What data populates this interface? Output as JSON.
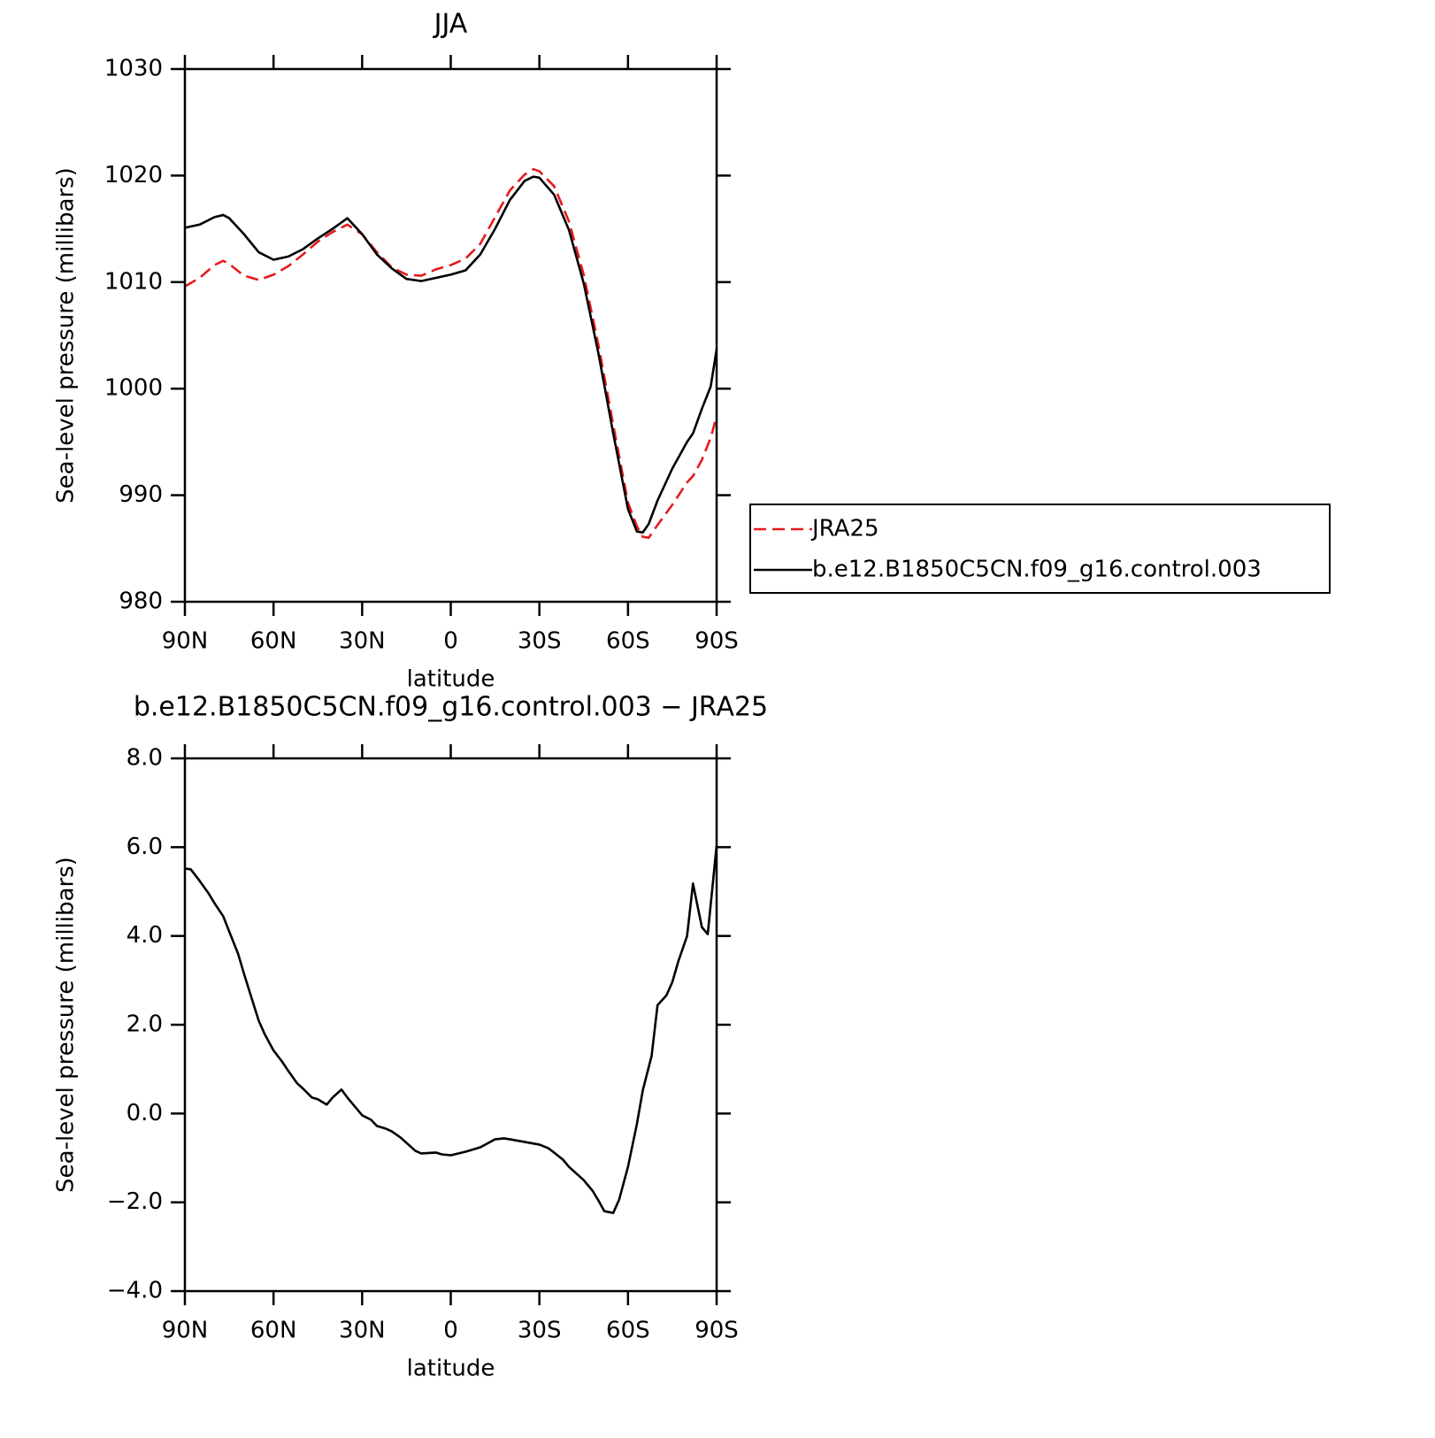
{
  "chart_data": [
    {
      "type": "line",
      "title": "JJA",
      "xlabel": "latitude",
      "ylabel": "Sea-level pressure (millibars)",
      "x": [
        90,
        85,
        80,
        77,
        75,
        70,
        65,
        60,
        55,
        50,
        45,
        40,
        35,
        30,
        25,
        20,
        15,
        10,
        5,
        0,
        -5,
        -10,
        -15,
        -20,
        -25,
        -28,
        -30,
        -35,
        -40,
        -45,
        -50,
        -55,
        -60,
        -63,
        -65,
        -67,
        -70,
        -75,
        -80,
        -82,
        -85,
        -88,
        -90
      ],
      "series": [
        {
          "name": "JRA25",
          "color": "#e41a1c",
          "dashed": true,
          "values": [
            1009.6,
            1010.4,
            1011.6,
            1012.0,
            1011.7,
            1010.6,
            1010.2,
            1010.7,
            1011.5,
            1012.6,
            1013.8,
            1014.7,
            1015.4,
            1014.5,
            1012.8,
            1011.4,
            1010.7,
            1010.6,
            1011.2,
            1011.6,
            1012.2,
            1013.6,
            1016.1,
            1018.6,
            1020.1,
            1020.6,
            1020.4,
            1019.0,
            1015.7,
            1010.7,
            1004.1,
            996.6,
            989.3,
            987.1,
            986.1,
            986.0,
            987.2,
            989.1,
            991.2,
            991.8,
            993.3,
            995.4,
            997.4
          ]
        },
        {
          "name": "b.e12.B1850C5CN.f09_g16.control.003",
          "color": "#000000",
          "dashed": false,
          "values": [
            1015.1,
            1015.4,
            1016.1,
            1016.3,
            1016.0,
            1014.5,
            1012.8,
            1012.1,
            1012.4,
            1013.1,
            1014.1,
            1015.0,
            1016.0,
            1014.5,
            1012.6,
            1011.3,
            1010.3,
            1010.1,
            1010.4,
            1010.7,
            1011.1,
            1012.6,
            1015.0,
            1017.7,
            1019.5,
            1019.9,
            1019.8,
            1018.2,
            1014.9,
            1009.9,
            1003.3,
            995.8,
            988.7,
            986.6,
            986.5,
            987.3,
            989.5,
            992.5,
            995.0,
            995.8,
            998.1,
            1000.2,
            1003.7
          ]
        }
      ],
      "xlim": [
        90,
        -90
      ],
      "xticks": [
        {
          "value": 90,
          "label": "90N"
        },
        {
          "value": 60,
          "label": "60N"
        },
        {
          "value": 30,
          "label": "30N"
        },
        0,
        {
          "value": -30,
          "label": "30S"
        },
        {
          "value": -60,
          "label": "60S"
        },
        {
          "value": -90,
          "label": "90S"
        }
      ],
      "ylim": [
        980,
        1030
      ],
      "yticks": [
        980,
        990,
        1000,
        1010,
        1020,
        1030
      ],
      "legend": "right"
    },
    {
      "type": "line",
      "title": "b.e12.B1850C5CN.f09_g16.control.003 − JRA25",
      "xlabel": "latitude",
      "ylabel": "Sea-level pressure (millibars)",
      "x": [
        90,
        88,
        85,
        82,
        80,
        77,
        75,
        72,
        70,
        67,
        65,
        63,
        60,
        57,
        55,
        52,
        50,
        47,
        45,
        42,
        40,
        37,
        35,
        32,
        30,
        27,
        25,
        22,
        20,
        17,
        15,
        12,
        10,
        5,
        3,
        0,
        -5,
        -10,
        -15,
        -18,
        -20,
        -25,
        -30,
        -33,
        -35,
        -38,
        -40,
        -45,
        -48,
        -50,
        -52,
        -55,
        -57,
        -60,
        -63,
        -65,
        -68,
        -70,
        -73,
        -75,
        -77,
        -80,
        -82,
        -85,
        -87,
        -90
      ],
      "series": [
        {
          "color": "#000000",
          "dashed": false,
          "values": [
            5.52,
            5.5,
            5.24,
            4.96,
            4.74,
            4.44,
            4.1,
            3.6,
            3.15,
            2.51,
            2.09,
            1.79,
            1.42,
            1.16,
            0.96,
            0.68,
            0.56,
            0.36,
            0.32,
            0.2,
            0.36,
            0.54,
            0.36,
            0.12,
            -0.04,
            -0.14,
            -0.28,
            -0.34,
            -0.4,
            -0.54,
            -0.66,
            -0.84,
            -0.9,
            -0.88,
            -0.92,
            -0.94,
            -0.86,
            -0.76,
            -0.58,
            -0.56,
            -0.58,
            -0.64,
            -0.7,
            -0.78,
            -0.88,
            -1.04,
            -1.2,
            -1.5,
            -1.74,
            -1.96,
            -2.2,
            -2.24,
            -1.94,
            -1.2,
            -0.24,
            0.52,
            1.3,
            2.44,
            2.66,
            2.96,
            3.42,
            4.0,
            5.18,
            4.2,
            4.04,
            6.04
          ]
        }
      ],
      "xlim": [
        90,
        -90
      ],
      "xticks": [
        {
          "value": 90,
          "label": "90N"
        },
        {
          "value": 60,
          "label": "60N"
        },
        {
          "value": 30,
          "label": "30N"
        },
        0,
        {
          "value": -30,
          "label": "30S"
        },
        {
          "value": -60,
          "label": "60S"
        },
        {
          "value": -90,
          "label": "90S"
        }
      ],
      "ylim": [
        -4,
        8
      ],
      "yticks": [
        {
          "value": -4,
          "label": "−4.0"
        },
        {
          "value": -2,
          "label": "−2.0"
        },
        {
          "value": 0,
          "label": "0.0"
        },
        {
          "value": 2,
          "label": "2.0"
        },
        {
          "value": 4,
          "label": "4.0"
        },
        {
          "value": 6,
          "label": "6.0"
        },
        {
          "value": 8,
          "label": "8.0"
        }
      ]
    }
  ]
}
